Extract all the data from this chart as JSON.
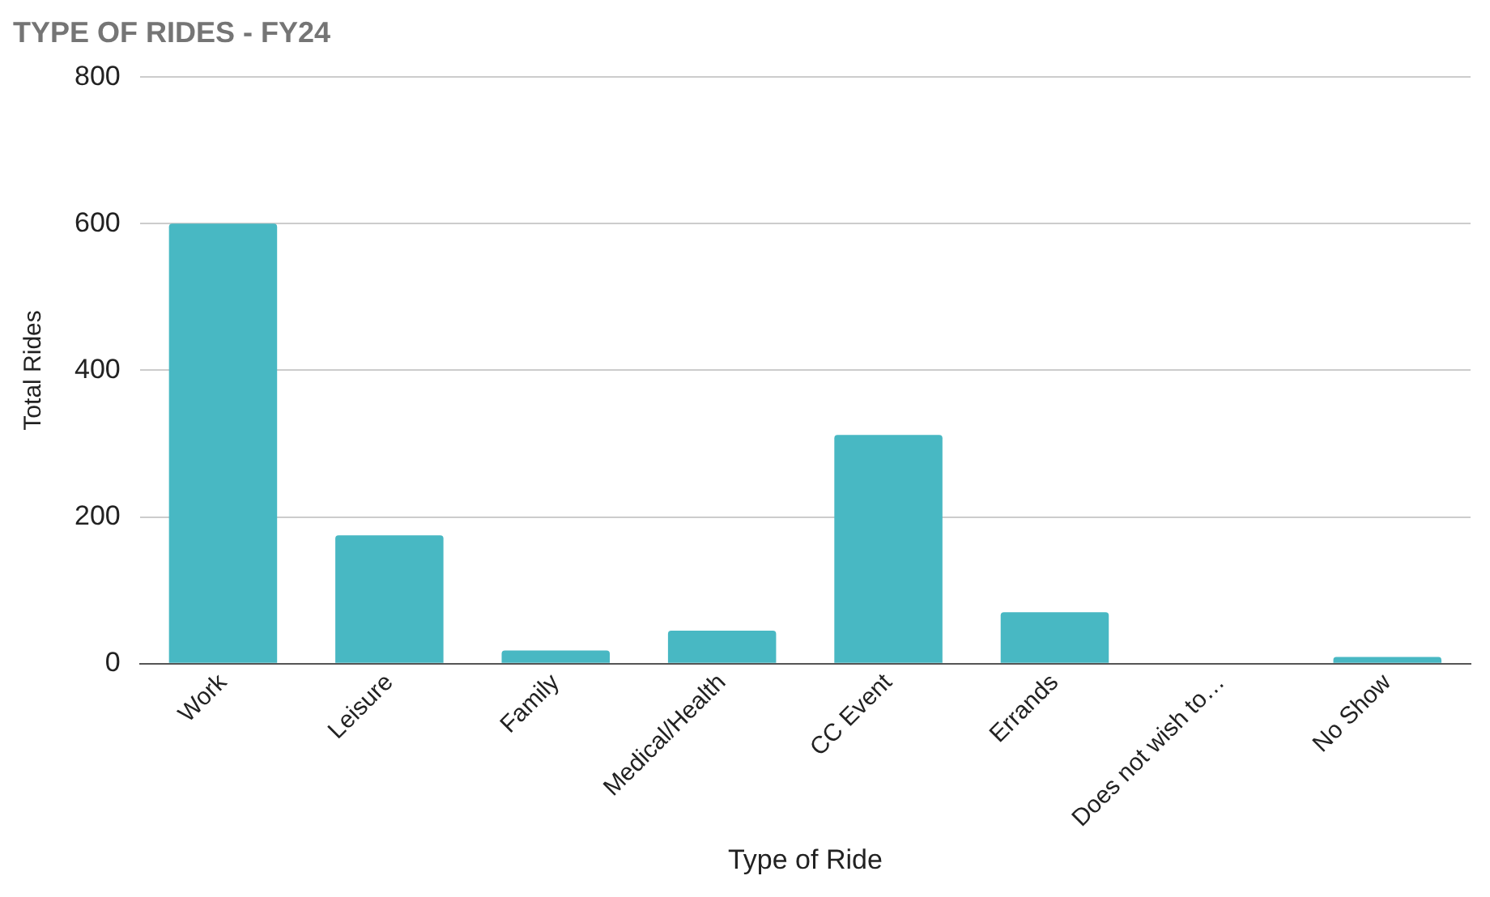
{
  "chart_data": {
    "type": "bar",
    "title": "TYPE OF RIDES - FY24",
    "xlabel": "Type of Ride",
    "ylabel": "Total Rides",
    "categories": [
      "Work",
      "Leisure",
      "Family",
      "Medical/Health",
      "CC Event",
      "Errands",
      "Does not wish to…",
      "No Show"
    ],
    "values": [
      600,
      175,
      18,
      45,
      312,
      70,
      0,
      9
    ],
    "color": "#48b8c3",
    "ylim": [
      0,
      800
    ],
    "yticks": [
      0,
      200,
      400,
      600,
      800
    ],
    "grid": "y",
    "legend": false
  }
}
